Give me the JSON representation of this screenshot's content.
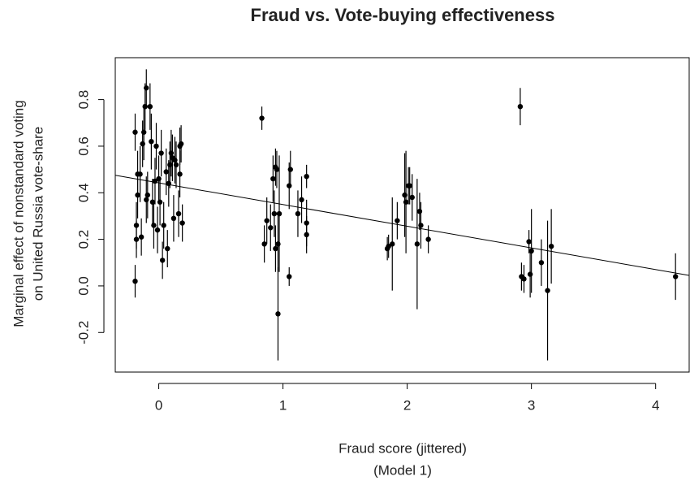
{
  "chart_data": {
    "type": "scatter",
    "title": "Fraud vs. Vote-buying effectiveness",
    "xlabel": [
      "Fraud score (jittered)",
      "(Model 1)"
    ],
    "ylabel": [
      "Marginal effect of nonstandard voting",
      "on United Russia vote-share"
    ],
    "xlim": [
      -0.35,
      4.27
    ],
    "ylim": [
      -0.37,
      0.98
    ],
    "xticks": [
      0,
      1,
      2,
      3,
      4
    ],
    "yticks": [
      -0.2,
      {
        "value": 0,
        "label": "0.0"
      },
      0.2,
      0.4,
      0.6,
      0.8
    ],
    "color": "#000000",
    "x": [
      -0.19,
      -0.19,
      -0.18,
      -0.18,
      -0.17,
      -0.17,
      -0.15,
      -0.14,
      -0.13,
      -0.12,
      -0.11,
      -0.1,
      -0.1,
      -0.09,
      -0.07,
      -0.06,
      -0.05,
      -0.04,
      -0.03,
      -0.02,
      -0.01,
      0.0,
      0.01,
      0.02,
      0.03,
      0.04,
      0.06,
      0.07,
      0.08,
      0.09,
      0.1,
      0.11,
      0.12,
      0.13,
      0.14,
      0.16,
      0.17,
      0.17,
      0.18,
      0.19,
      0.83,
      0.85,
      0.87,
      0.9,
      0.92,
      0.93,
      0.94,
      0.94,
      0.95,
      0.96,
      0.96,
      0.97,
      1.05,
      1.05,
      1.06,
      1.12,
      1.15,
      1.19,
      1.19,
      1.19,
      1.84,
      1.85,
      1.88,
      1.92,
      1.98,
      1.99,
      2.01,
      2.02,
      2.04,
      2.08,
      2.1,
      2.11,
      2.17,
      2.91,
      2.92,
      2.94,
      2.98,
      2.99,
      3.0,
      3.08,
      3.13,
      3.16,
      4.16
    ],
    "y": [
      0.66,
      0.02,
      0.26,
      0.2,
      0.39,
      0.48,
      0.48,
      0.21,
      0.61,
      0.66,
      0.77,
      0.85,
      0.37,
      0.39,
      0.77,
      0.62,
      0.36,
      0.26,
      0.45,
      0.6,
      0.24,
      0.46,
      0.36,
      0.57,
      0.11,
      0.26,
      0.49,
      0.16,
      0.44,
      0.52,
      0.57,
      0.55,
      0.29,
      0.54,
      0.52,
      0.31,
      0.48,
      0.6,
      0.61,
      0.27,
      0.72,
      0.18,
      0.28,
      0.25,
      0.46,
      0.31,
      0.51,
      0.16,
      0.5,
      0.18,
      -0.12,
      0.31,
      0.04,
      0.43,
      0.5,
      0.31,
      0.37,
      0.47,
      0.27,
      0.22,
      0.16,
      0.17,
      0.18,
      0.28,
      0.39,
      0.36,
      0.43,
      0.43,
      0.38,
      0.18,
      0.32,
      0.26,
      0.2,
      0.77,
      0.04,
      0.03,
      0.19,
      0.05,
      0.15,
      0.1,
      -0.02,
      0.17,
      0.04
    ],
    "err": [
      0.08,
      0.07,
      0.1,
      0.08,
      0.1,
      0.1,
      0.12,
      0.08,
      0.1,
      0.12,
      0.1,
      0.08,
      0.1,
      0.1,
      0.1,
      0.12,
      0.1,
      0.1,
      0.1,
      0.1,
      0.1,
      0.1,
      0.1,
      0.1,
      0.08,
      0.1,
      0.1,
      0.08,
      0.1,
      0.1,
      0.1,
      0.1,
      0.1,
      0.1,
      0.1,
      0.1,
      0.1,
      0.08,
      0.08,
      0.08,
      0.05,
      0.08,
      0.1,
      0.1,
      0.1,
      0.1,
      0.08,
      0.1,
      0.08,
      0.12,
      0.2,
      0.25,
      0.04,
      0.1,
      0.08,
      0.1,
      0.1,
      0.05,
      0.1,
      0.08,
      0.05,
      0.05,
      0.2,
      0.08,
      0.18,
      0.22,
      0.08,
      0.08,
      0.1,
      0.28,
      0.08,
      0.1,
      0.06,
      0.08,
      0.06,
      0.06,
      0.05,
      0.1,
      0.18,
      0.1,
      0.3,
      0.16,
      0.1
    ],
    "fit_line": {
      "x": [
        -0.35,
        4.27
      ],
      "y": [
        0.475,
        0.045
      ]
    }
  }
}
